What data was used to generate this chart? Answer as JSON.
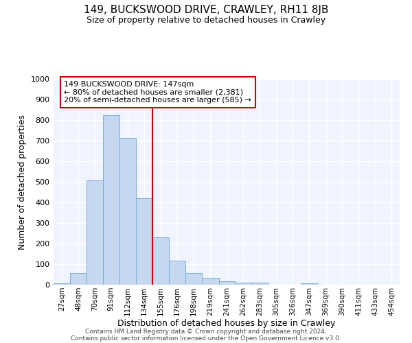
{
  "title": "149, BUCKSWOOD DRIVE, CRAWLEY, RH11 8JB",
  "subtitle": "Size of property relative to detached houses in Crawley",
  "xlabel": "Distribution of detached houses by size in Crawley",
  "ylabel": "Number of detached properties",
  "bar_color": "#c5d8f0",
  "bar_edge_color": "#7aadd4",
  "background_color": "#ffffff",
  "plot_bg_color": "#f0f4ff",
  "grid_color": "#ffffff",
  "categories": [
    "27sqm",
    "48sqm",
    "70sqm",
    "91sqm",
    "112sqm",
    "134sqm",
    "155sqm",
    "176sqm",
    "198sqm",
    "219sqm",
    "241sqm",
    "262sqm",
    "283sqm",
    "305sqm",
    "326sqm",
    "347sqm",
    "369sqm",
    "390sqm",
    "411sqm",
    "433sqm",
    "454sqm"
  ],
  "values": [
    8,
    57,
    507,
    825,
    713,
    420,
    230,
    118,
    57,
    35,
    18,
    10,
    10,
    0,
    0,
    8,
    0,
    0,
    0,
    0,
    0
  ],
  "bin_starts": [
    27,
    48,
    70,
    91,
    112,
    134,
    155,
    176,
    198,
    219,
    241,
    262,
    283,
    305,
    326,
    347,
    369,
    390,
    411,
    433,
    454
  ],
  "vline_x": 155,
  "annotation_text": "149 BUCKSWOOD DRIVE: 147sqm\n← 80% of detached houses are smaller (2,381)\n20% of semi-detached houses are larger (585) →",
  "annotation_box_facecolor": "#ffffff",
  "annotation_box_edgecolor": "#cc0000",
  "vline_color": "#cc0000",
  "ylim": [
    0,
    1000
  ],
  "yticks": [
    0,
    100,
    200,
    300,
    400,
    500,
    600,
    700,
    800,
    900,
    1000
  ],
  "footer1": "Contains HM Land Registry data © Crown copyright and database right 2024.",
  "footer2": "Contains public sector information licensed under the Open Government Licence v3.0."
}
